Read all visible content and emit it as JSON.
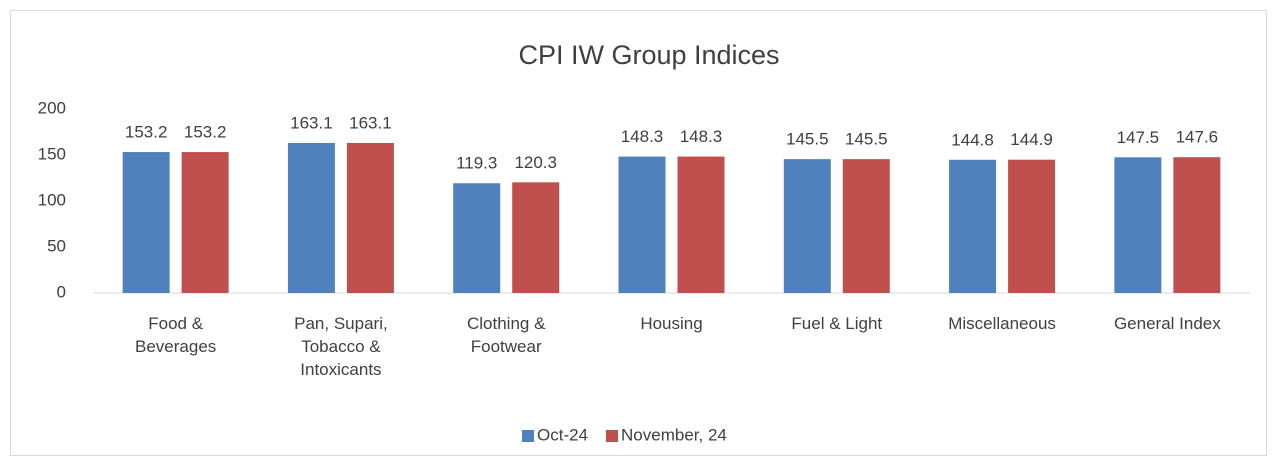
{
  "chart_data": {
    "type": "bar",
    "title": "CPI IW Group Indices",
    "categories": [
      "Food & Beverages",
      "Pan, Supari, Tobacco & Intoxicants",
      "Clothing & Footwear",
      "Housing",
      "Fuel & Light",
      "Miscellaneous",
      "General Index"
    ],
    "series": [
      {
        "name": "Oct-24",
        "color": "#4f81bd",
        "values": [
          153.2,
          163.1,
          119.3,
          148.3,
          145.5,
          144.8,
          147.5
        ]
      },
      {
        "name": "November, 24",
        "color": "#c0504d",
        "values": [
          153.2,
          163.1,
          120.3,
          148.3,
          145.5,
          144.9,
          147.6
        ]
      }
    ],
    "ylim": [
      0,
      200
    ],
    "yticks": [
      0,
      50,
      100,
      150,
      200
    ],
    "grid": false,
    "legend": "bottom"
  }
}
